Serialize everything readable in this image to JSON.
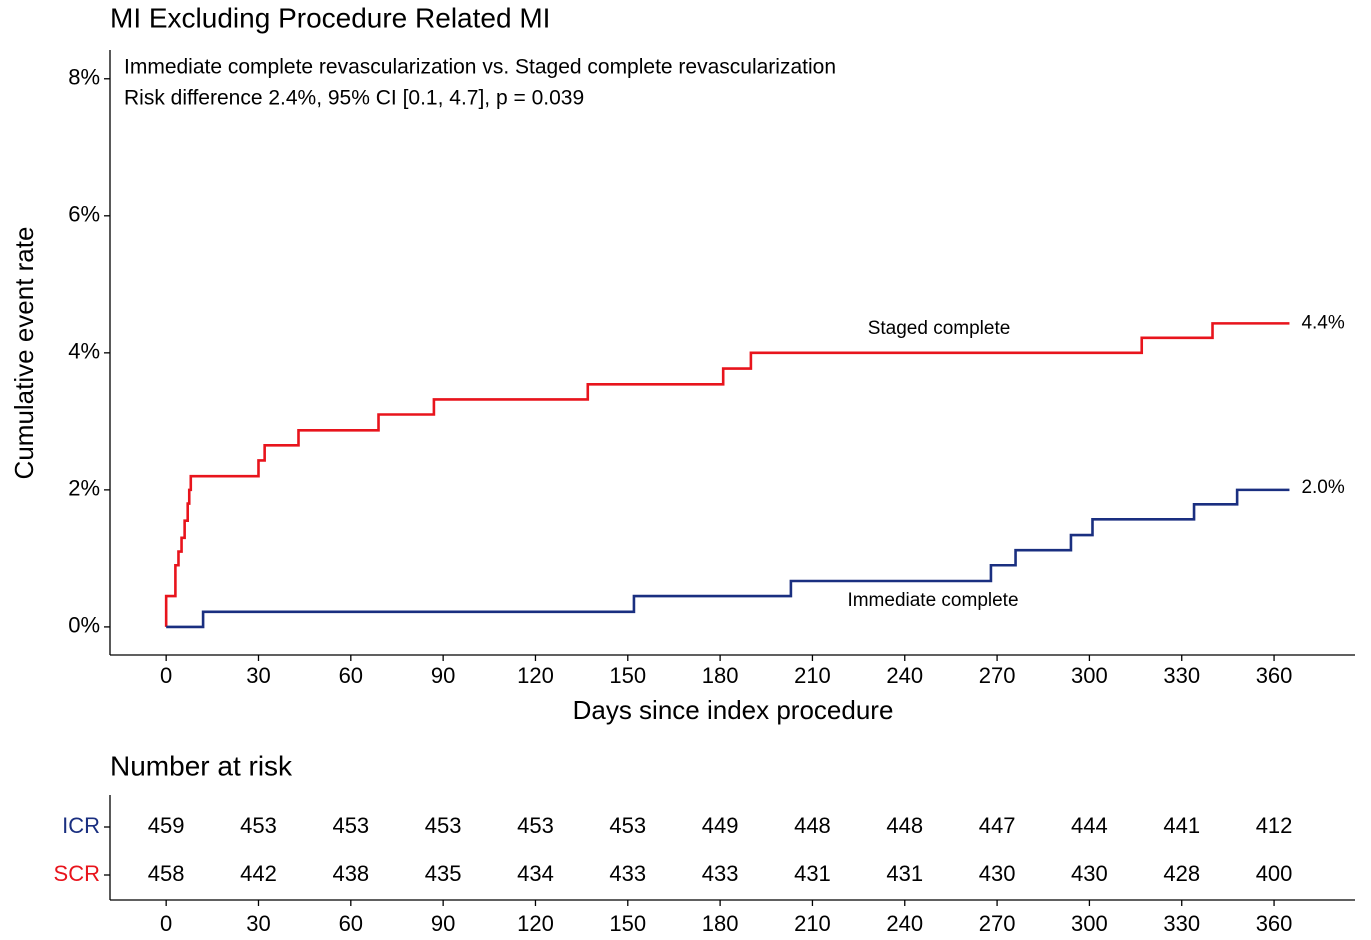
{
  "chart_data": {
    "type": "step",
    "title": "MI Excluding Procedure Related MI",
    "subtitle": [
      "Immediate complete revascularization vs. Staged complete revascularization",
      "Risk difference 2.4%, 95% CI [0.1, 4.7], p = 0.039"
    ],
    "x_label": "Days since index procedure",
    "y_label": "Cumulative event rate",
    "xlim": [
      -18.25,
      386.3
    ],
    "ylim": [
      -0.41,
      8.42
    ],
    "xticks": [
      0,
      30,
      60,
      90,
      120,
      150,
      180,
      210,
      240,
      270,
      300,
      330,
      360
    ],
    "yticks": [
      {
        "value": 0,
        "label": "0%"
      },
      {
        "value": 2,
        "label": "2%"
      },
      {
        "value": 4,
        "label": "4%"
      },
      {
        "value": 6,
        "label": "6%"
      },
      {
        "value": 8,
        "label": "8%"
      }
    ],
    "series": [
      {
        "name": "Staged complete",
        "color": "#e8141c",
        "x": [
          0,
          0,
          3,
          4,
          5,
          6,
          7,
          7.5,
          8,
          30,
          32,
          43,
          69,
          87,
          137,
          181,
          190,
          317,
          340,
          365
        ],
        "values": [
          0,
          0.45,
          0.9,
          1.1,
          1.3,
          1.55,
          1.8,
          2.0,
          2.2,
          2.43,
          2.65,
          2.87,
          3.1,
          3.32,
          3.54,
          3.77,
          4.0,
          4.22,
          4.43,
          4.43
        ],
        "end_label": {
          "value": 4.4,
          "label": "4.4%"
        }
      },
      {
        "name": "Immediate complete",
        "color": "#1a2f80",
        "x": [
          0,
          12,
          152,
          203,
          268,
          276,
          294,
          301,
          334,
          348,
          365
        ],
        "values": [
          0,
          0.22,
          0.45,
          0.67,
          0.9,
          1.12,
          1.34,
          1.57,
          1.79,
          2.0,
          2.0
        ],
        "end_label": {
          "value": 2.0,
          "label": "2.0%"
        }
      }
    ],
    "risk_table": {
      "title": "Number at risk",
      "times": [
        0,
        30,
        60,
        90,
        120,
        150,
        180,
        210,
        240,
        270,
        300,
        330,
        360
      ],
      "rows": [
        {
          "name": "ICR",
          "color": "#1a2f80",
          "values": [
            459,
            453,
            453,
            453,
            453,
            453,
            449,
            448,
            448,
            447,
            444,
            441,
            412
          ]
        },
        {
          "name": "SCR",
          "color": "#e8141c",
          "values": [
            458,
            442,
            438,
            435,
            434,
            433,
            433,
            431,
            431,
            430,
            430,
            428,
            400
          ]
        }
      ]
    }
  }
}
